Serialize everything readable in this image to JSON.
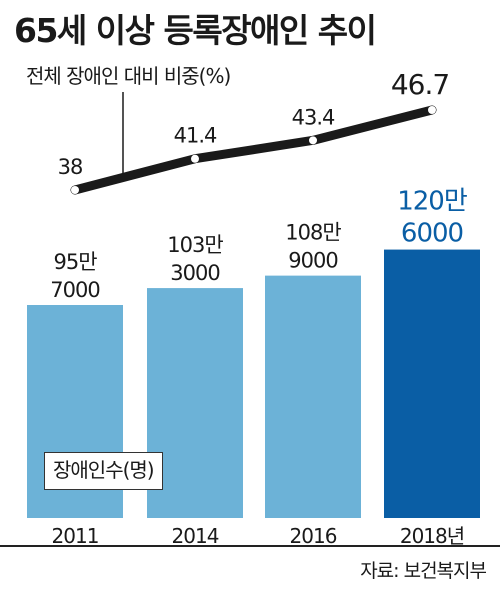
{
  "title": "65세 이상 등록장애인 추이",
  "source": "자료: 보건복지부",
  "chart_data": [
    {
      "type": "bar",
      "categories": [
        "2011",
        "2014",
        "2016",
        "2018년"
      ],
      "series": [
        {
          "name": "장애인수(명)",
          "values": [
            957000,
            1033000,
            1089000,
            1206000
          ],
          "labels": [
            [
              "95만",
              "7000"
            ],
            [
              "103만",
              "3000"
            ],
            [
              "108만",
              "9000"
            ],
            [
              "120만",
              "6000"
            ]
          ]
        }
      ],
      "colors": [
        "#6cb2d7",
        "#6cb2d7",
        "#6cb2d7",
        "#0a5ea5"
      ],
      "legend": "bottom-left"
    },
    {
      "type": "line",
      "x": [
        "2011",
        "2014",
        "2016",
        "2018년"
      ],
      "series": [
        {
          "name": "전체 장애인 대비 비중(%)",
          "values": [
            38,
            41.4,
            43.4,
            46.7
          ],
          "labels": [
            "38",
            "41.4",
            "43.4",
            "46.7"
          ]
        }
      ],
      "color": "#1a1a1a",
      "legend": "top-left"
    }
  ]
}
